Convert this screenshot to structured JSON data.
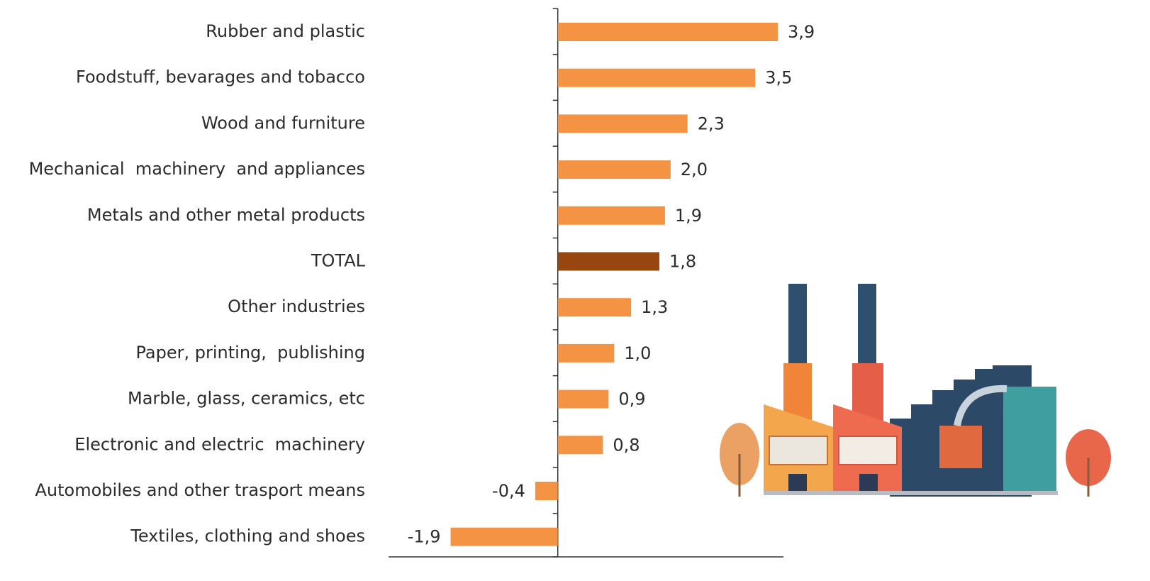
{
  "chart_data": {
    "type": "barh",
    "categories": [
      "Rubber and plastic",
      "Foodstuff, bevarages and tobacco",
      "Wood and furniture",
      "Mechanical  machinery  and appliances",
      "Metals and other metal products",
      "TOTAL",
      "Other industries",
      "Paper, printing,  publishing",
      "Marble, glass, ceramics, etc",
      "Electronic and electric  machinery",
      "Automobiles and other trasport means",
      "Textiles, clothing and shoes"
    ],
    "values": [
      3.9,
      3.5,
      2.3,
      2.0,
      1.9,
      1.8,
      1.3,
      1.0,
      0.9,
      0.8,
      -0.4,
      -1.9
    ],
    "value_labels": [
      "3,9",
      "3,5",
      "2,3",
      "2,0",
      "1,9",
      "1,8",
      "1,3",
      "1,0",
      "0,9",
      "0,8",
      "-0,4",
      "-1,9"
    ],
    "colors": [
      "#f39343",
      "#f39343",
      "#f39343",
      "#f39343",
      "#f39343",
      "#974610",
      "#f39343",
      "#f39343",
      "#f39343",
      "#f39343",
      "#f39343",
      "#f39343"
    ],
    "xlim": [
      -3,
      4
    ]
  }
}
